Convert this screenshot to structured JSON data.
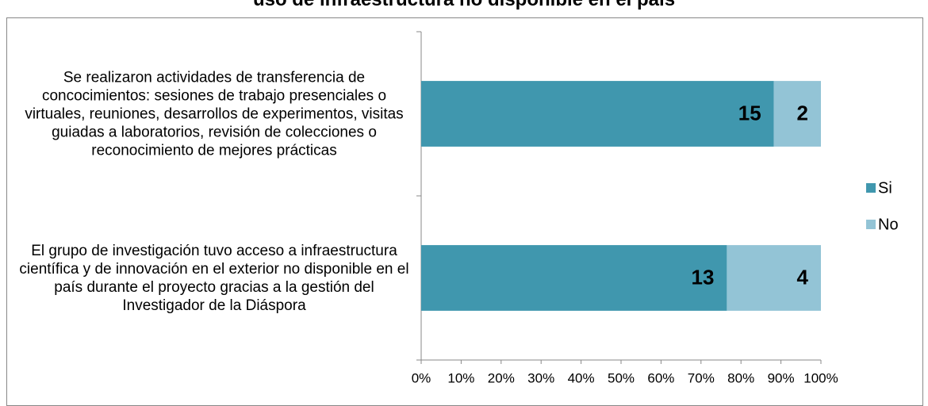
{
  "chart_data": {
    "type": "bar",
    "orientation": "horizontal",
    "percent_stacked": true,
    "title": "uso de infraestructura no disponible en el país",
    "categories": [
      "Se realizaron actividades de transferencia de concocimientos: sesiones de trabajo presenciales o virtuales, reuniones, desarrollos de experimentos, visitas guiadas a laboratorios, revisión de colecciones o reconocimiento de mejores prácticas",
      "El grupo de investigación tuvo acceso a infraestructura científica y de innovación en el exterior no disponible en el país durante el proyecto gracias a la gestión del Investigador de la Diáspora"
    ],
    "series": [
      {
        "name": "Si",
        "color": "#4097ae",
        "values": [
          15,
          13
        ]
      },
      {
        "name": "No",
        "color": "#93c4d6",
        "values": [
          2,
          4
        ]
      }
    ],
    "xlim": [
      0,
      100
    ],
    "xticks": [
      {
        "value": 0,
        "label": "0%"
      },
      {
        "value": 10,
        "label": "10%"
      },
      {
        "value": 20,
        "label": "20%"
      },
      {
        "value": 30,
        "label": "30%"
      },
      {
        "value": 40,
        "label": "40%"
      },
      {
        "value": 50,
        "label": "50%"
      },
      {
        "value": 60,
        "label": "60%"
      },
      {
        "value": 70,
        "label": "70%"
      },
      {
        "value": 80,
        "label": "80%"
      },
      {
        "value": 90,
        "label": "90%"
      },
      {
        "value": 100,
        "label": "100%"
      }
    ],
    "legend": "right",
    "grid": false
  }
}
